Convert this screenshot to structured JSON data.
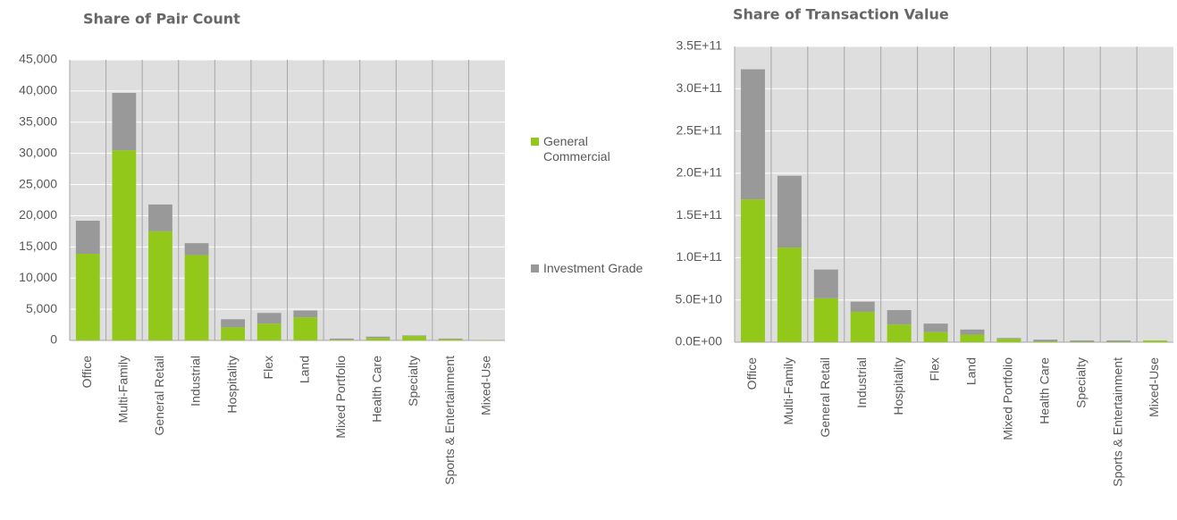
{
  "chart_data": [
    {
      "type": "bar",
      "stacked": true,
      "title": "Share of Pair Count",
      "categories": [
        "Office",
        "Multi-Family",
        "General Retail",
        "Industrial",
        "Hospitality",
        "Flex",
        "Land",
        "Mixed Portfolio",
        "Health Care",
        "Specialty",
        "Sports & Entertainment",
        "Mixed-Use"
      ],
      "series": [
        {
          "name": "General Commercial",
          "color": "#92c81a",
          "values": [
            13900,
            30500,
            17500,
            13700,
            2100,
            2700,
            3700,
            100,
            400,
            700,
            200,
            50
          ]
        },
        {
          "name": "Investment Grade",
          "color": "#999999",
          "values": [
            5300,
            9200,
            4300,
            1900,
            1300,
            1700,
            1100,
            200,
            200,
            100,
            100,
            0
          ]
        }
      ],
      "ylim": [
        0,
        45000
      ],
      "yticks": [
        0,
        {
          "value": 5000,
          "label": "5,000"
        },
        {
          "value": 10000,
          "label": "10,000"
        },
        {
          "value": 15000,
          "label": "15,000"
        },
        {
          "value": 20000,
          "label": "20,000"
        },
        {
          "value": 25000,
          "label": "25,000"
        },
        {
          "value": 30000,
          "label": "30,000"
        },
        {
          "value": 35000,
          "label": "35,000"
        },
        {
          "value": 40000,
          "label": "40,000"
        },
        {
          "value": 45000,
          "label": "45,000"
        }
      ],
      "grid": true,
      "legend": "right"
    },
    {
      "type": "bar",
      "stacked": true,
      "title": "Share of Transaction Value",
      "categories": [
        "Office",
        "Multi-Family",
        "General Retail",
        "Industrial",
        "Hospitality",
        "Flex",
        "Land",
        "Mixed Portfolio",
        "Health Care",
        "Specialty",
        "Sports & Entertainment",
        "Mixed-Use"
      ],
      "series": [
        {
          "color": "#92c81a",
          "values": [
            169000000000,
            112000000000,
            52000000000,
            36000000000,
            21000000000,
            12000000000,
            9000000000,
            4000000000,
            1000000000,
            500000000,
            500000000,
            2000000000
          ]
        },
        {
          "color": "#999999",
          "values": [
            154000000000,
            85000000000,
            34000000000,
            12000000000,
            17000000000,
            10000000000,
            6000000000,
            1000000000,
            2000000000,
            1500000000,
            1500000000,
            0
          ]
        }
      ],
      "ylim": [
        0,
        350000000000
      ],
      "yticks": [
        {
          "value": 0,
          "label": "0.0E+00"
        },
        {
          "value": 50000000000,
          "label": "5.0E+10"
        },
        {
          "value": 100000000000,
          "label": "1.0E+11"
        },
        {
          "value": 150000000000,
          "label": "1.5E+11"
        },
        {
          "value": 200000000000,
          "label": "2.0E+11"
        },
        {
          "value": 250000000000,
          "label": "2.5E+11"
        },
        {
          "value": 300000000000,
          "label": "3.0E+11"
        },
        {
          "value": 350000000000,
          "label": "3.5E+11"
        }
      ],
      "grid": true
    }
  ]
}
